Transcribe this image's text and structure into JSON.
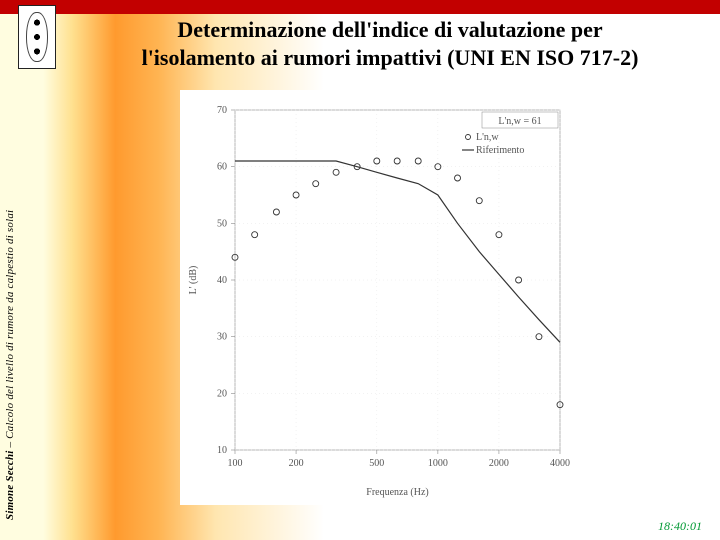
{
  "title_line1": "Determinazione dell'indice di valutazione per",
  "title_line2": "l'isolamento ai rumori impattivi (UNI EN ISO 717-2)",
  "sidebar_author": "Simone Secchi",
  "sidebar_rest": " – Calcolo del livello di rumore da calpestio di solai",
  "timestamp": "18:40:01",
  "chart": {
    "type": "scatter+line",
    "ylabel": "L' (dB)",
    "xlabel": "Frequenza (Hz)",
    "ylim": [
      10,
      70
    ],
    "ytick_step": 10,
    "xticks": [
      100,
      200,
      500,
      1000,
      2000,
      4000
    ],
    "xtick_labels": [
      "100",
      "200",
      "500",
      "1000",
      "2000",
      "4000"
    ],
    "background_color": "#ffffff",
    "axis_color": "#888888",
    "grid_color": "#e6e6e6",
    "legend": {
      "rw_label": "L'n,w = 61",
      "items": [
        "L'n,w",
        "Riferimento"
      ]
    },
    "ln_values": {
      "100": 44,
      "125": 48,
      "160": 52,
      "200": 55,
      "250": 57,
      "315": 59,
      "400": 60,
      "500": 61,
      "630": 61,
      "800": 61,
      "1000": 60,
      "1250": 58,
      "1600": 54,
      "2000": 48,
      "2500": 40,
      "3150": 30,
      "4000": 18
    },
    "ref_values": {
      "100": 61,
      "125": 61,
      "160": 61,
      "200": 61,
      "250": 61,
      "315": 61,
      "400": 60,
      "500": 59,
      "630": 58,
      "800": 57,
      "1000": 55,
      "1250": 50,
      "1600": 45,
      "2000": 41,
      "2500": 37,
      "3150": 33,
      "4000": 29
    },
    "marker_color": "#333333",
    "marker_size": 3,
    "ref_line_color": "#333333",
    "ref_line_width": 1.2,
    "label_fontsize": 10
  }
}
